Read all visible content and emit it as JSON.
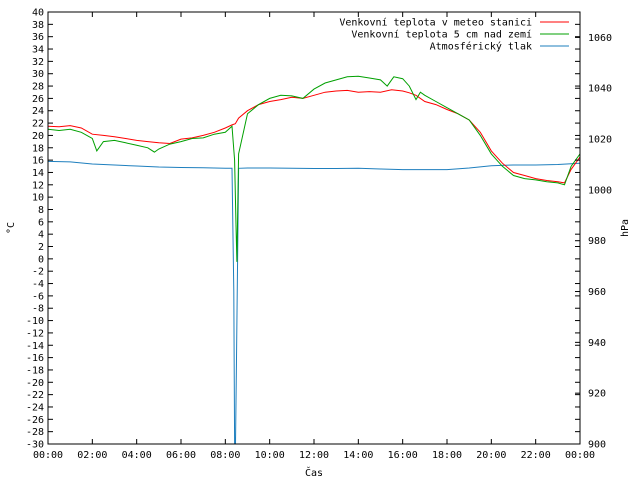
{
  "chart_data": {
    "type": "line",
    "xlabel": "Čas",
    "ylabel": "°C",
    "y2label": "hPa",
    "xlim": [
      0,
      24
    ],
    "ylim": [
      -30,
      40
    ],
    "y2lim": [
      900,
      1070
    ],
    "x_ticks": [
      "00:00",
      "02:00",
      "04:00",
      "06:00",
      "08:00",
      "10:00",
      "12:00",
      "14:00",
      "16:00",
      "18:00",
      "20:00",
      "22:00",
      "00:00"
    ],
    "y_ticks": [
      40,
      38,
      36,
      34,
      32,
      30,
      28,
      26,
      24,
      22,
      20,
      18,
      16,
      14,
      12,
      10,
      8,
      6,
      4,
      2,
      0,
      -2,
      -4,
      -6,
      -8,
      -10,
      -12,
      -14,
      -16,
      -18,
      -20,
      -22,
      -24,
      -26,
      -28,
      -30
    ],
    "y2_ticks": [
      1060,
      1040,
      1020,
      1000,
      980,
      960,
      940,
      920,
      900
    ],
    "grid": false,
    "legend_position": "top-right",
    "series": [
      {
        "name": "Venkovní teplota v meteo stanici",
        "axis": "y",
        "color": "#ff0000",
        "x": [
          0,
          0.5,
          1,
          1.5,
          2,
          2.5,
          3,
          3.5,
          4,
          4.5,
          5,
          5.5,
          6,
          6.5,
          7,
          7.5,
          8,
          8.3,
          8.45,
          8.6,
          9,
          9.5,
          10,
          10.5,
          11,
          11.5,
          12,
          12.5,
          13,
          13.5,
          14,
          14.5,
          15,
          15.5,
          16,
          16.3,
          16.6,
          17,
          17.5,
          18,
          18.5,
          19,
          19.5,
          20,
          20.5,
          21,
          21.5,
          22,
          22.5,
          23,
          23.3,
          23.6,
          24
        ],
        "values": [
          21.5,
          21.4,
          21.6,
          21.2,
          20.2,
          20.0,
          19.8,
          19.5,
          19.2,
          19.0,
          18.8,
          18.7,
          19.4,
          19.6,
          20.0,
          20.5,
          21.2,
          21.7,
          21.9,
          22.8,
          24.0,
          25.0,
          25.5,
          25.8,
          26.2,
          26.0,
          26.5,
          27.0,
          27.2,
          27.3,
          27.0,
          27.1,
          27.0,
          27.4,
          27.2,
          26.9,
          26.5,
          25.5,
          25.0,
          24.2,
          23.5,
          22.5,
          20.5,
          17.5,
          15.5,
          14.0,
          13.5,
          13.0,
          12.7,
          12.5,
          12.3,
          14.5,
          16.5
        ]
      },
      {
        "name": "Venkovní teplota 5 cm nad zemí",
        "axis": "y",
        "color": "#00a000",
        "x": [
          0,
          0.5,
          1,
          1.5,
          2,
          2.2,
          2.5,
          3,
          3.5,
          4,
          4.5,
          4.8,
          5,
          5.5,
          6,
          6.5,
          7,
          7.5,
          8,
          8.3,
          8.42,
          8.48,
          8.52,
          8.6,
          9,
          9.5,
          10,
          10.5,
          11,
          11.5,
          12,
          12.5,
          13,
          13.5,
          14,
          14.5,
          15,
          15.3,
          15.6,
          16,
          16.3,
          16.6,
          16.8,
          17,
          17.5,
          18,
          18.5,
          19,
          19.5,
          20,
          20.5,
          21,
          21.5,
          22,
          22.5,
          23,
          23.3,
          23.6,
          24
        ],
        "values": [
          21.0,
          20.8,
          21.0,
          20.5,
          19.5,
          17.5,
          19.0,
          19.2,
          18.8,
          18.4,
          18.0,
          17.3,
          17.8,
          18.6,
          19.0,
          19.5,
          19.6,
          20.2,
          20.5,
          21.5,
          16.0,
          5.5,
          -0.5,
          17.0,
          23.5,
          25.0,
          26.0,
          26.5,
          26.4,
          26.0,
          27.5,
          28.5,
          29.0,
          29.5,
          29.6,
          29.3,
          29.0,
          28.0,
          29.5,
          29.2,
          28.0,
          25.8,
          27.0,
          26.5,
          25.5,
          24.5,
          23.5,
          22.5,
          20.0,
          17.0,
          15.0,
          13.5,
          13.0,
          12.8,
          12.5,
          12.3,
          12.0,
          15.0,
          17.0
        ]
      },
      {
        "name": "Atmosférický tlak",
        "axis": "y2",
        "color": "#1e7fbe",
        "x": [
          0,
          1,
          2,
          3,
          4,
          5,
          6,
          7,
          8,
          8.3,
          8.38,
          8.42,
          8.46,
          8.5,
          8.6,
          9,
          10,
          11,
          12,
          13,
          14,
          15,
          16,
          17,
          18,
          19,
          20,
          21,
          22,
          23,
          24
        ],
        "values": [
          1011.2,
          1011.0,
          1010.2,
          1009.8,
          1009.4,
          1009.0,
          1008.8,
          1008.7,
          1008.5,
          1008.5,
          960,
          900,
          900,
          930,
          1008.5,
          1008.6,
          1008.6,
          1008.5,
          1008.4,
          1008.4,
          1008.5,
          1008.2,
          1008.0,
          1008.0,
          1008.0,
          1008.6,
          1009.5,
          1009.8,
          1009.8,
          1010.0,
          1010.5
        ]
      }
    ]
  }
}
